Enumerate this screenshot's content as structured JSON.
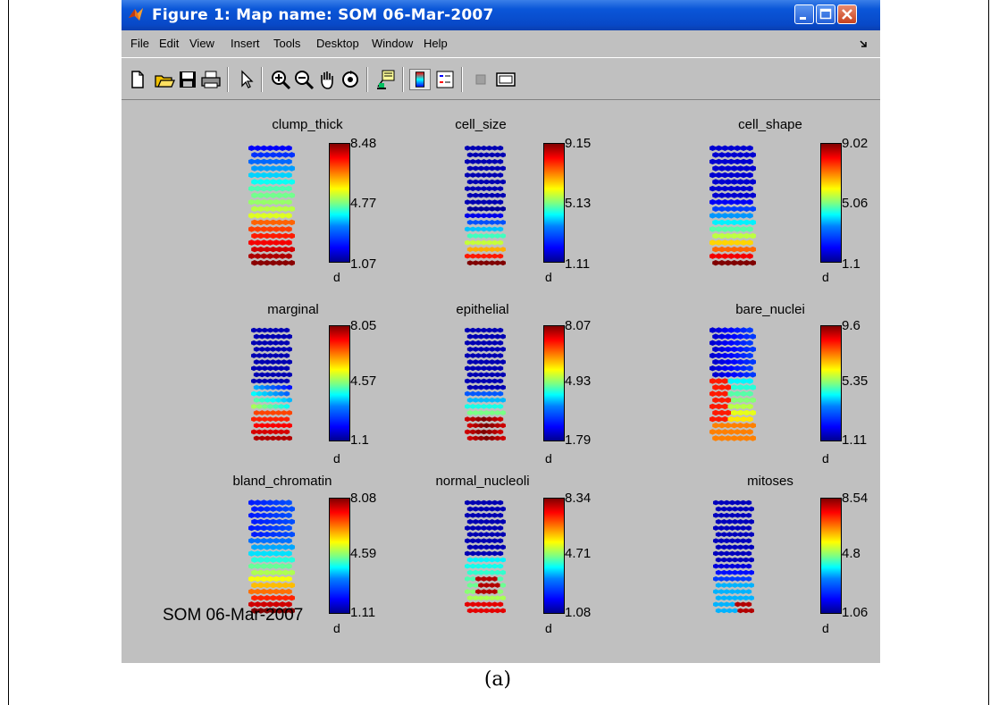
{
  "window": {
    "title": "Figure 1: Map name: SOM 06-Mar-2007",
    "controls": [
      "minimize-icon",
      "maximize-icon",
      "close-icon"
    ]
  },
  "menubar": [
    "File",
    "Edit",
    "View",
    "Insert",
    "Tools",
    "Desktop",
    "Window",
    "Help"
  ],
  "toolbar": [
    "new-figure-icon",
    "open-file-icon",
    "save-icon",
    "print-icon",
    "edit-plot-arrow-icon",
    "zoom-in-icon",
    "zoom-out-icon",
    "pan-hand-icon",
    "rotate-3d-icon",
    "data-cursor-icon",
    "colorbar-icon",
    "legend-icon",
    "hide-plot-tools-icon",
    "show-plot-tools-icon"
  ],
  "plots": [
    {
      "name": "clump_thick",
      "cbar": [
        "8.48",
        "4.77",
        "1.07"
      ],
      "unit": "d"
    },
    {
      "name": "cell_size",
      "cbar": [
        "9.15",
        "5.13",
        "1.11"
      ],
      "unit": "d"
    },
    {
      "name": "cell_shape",
      "cbar": [
        "9.02",
        "5.06",
        "1.1"
      ],
      "unit": "d"
    },
    {
      "name": "marginal",
      "cbar": [
        "8.05",
        "4.57",
        "1.1"
      ],
      "unit": "d"
    },
    {
      "name": "epithelial",
      "cbar": [
        "8.07",
        "4.93",
        "1.79"
      ],
      "unit": "d"
    },
    {
      "name": "bare_nuclei",
      "cbar": [
        "9.6",
        "5.35",
        "1.11"
      ],
      "unit": "d"
    },
    {
      "name": "bland_chromatin",
      "cbar": [
        "8.08",
        "4.59",
        "1.11"
      ],
      "unit": "d"
    },
    {
      "name": "normal_nucleoli",
      "cbar": [
        "8.34",
        "4.71",
        "1.08"
      ],
      "unit": "d"
    },
    {
      "name": "mitoses",
      "cbar": [
        "8.54",
        "4.8",
        "1.06"
      ],
      "unit": "d"
    }
  ],
  "footer_text": "SOM 06-Mar-2007",
  "caption": "(a)"
}
